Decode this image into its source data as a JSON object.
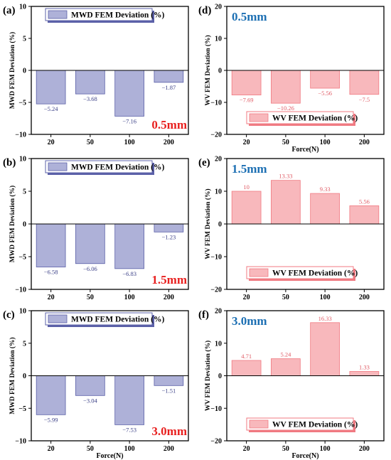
{
  "chart_data": [
    {
      "id": "a",
      "panel_label": "(a)",
      "type": "bar",
      "categories": [
        "20",
        "50",
        "100",
        "200"
      ],
      "values": [
        -5.24,
        -3.68,
        -7.16,
        -1.87
      ],
      "value_labels": [
        "−5.24",
        "−3.68",
        "−7.16",
        "−1.87"
      ],
      "legend": "MWD FEM Deviation (%)",
      "legend_position": "top",
      "ylabel": "MWD FEM Deviation (%)",
      "xlabel": "",
      "ylim": [
        -10,
        10
      ],
      "yticks": [
        "−10",
        "−5",
        "0",
        "5",
        "10"
      ],
      "annotation": "0.5mm",
      "annotation_color": "#e8201f",
      "annotation_position": "bottom-right",
      "bar_color": "#aeb1d8",
      "edge_color": "#5b60a8",
      "label_color": "#3a3f86"
    },
    {
      "id": "d",
      "panel_label": "(d)",
      "type": "bar",
      "categories": [
        "20",
        "50",
        "100",
        "200"
      ],
      "values": [
        -7.69,
        -10.26,
        -5.56,
        -7.5
      ],
      "value_labels": [
        "−7.69",
        "−10.26",
        "−5.56",
        "−7.5"
      ],
      "legend": "WV FEM Deviation (%)",
      "legend_position": "bottom",
      "ylabel": "WV FEM Deviation (%)",
      "xlabel": "Force(N)",
      "ylim": [
        -20,
        20
      ],
      "yticks": [
        "−20",
        "−10",
        "0",
        "10",
        "20"
      ],
      "annotation": "0.5mm",
      "annotation_color": "#1c6fb3",
      "annotation_position": "top-left",
      "bar_color": "#f8b8bc",
      "edge_color": "#f07a82",
      "label_color": "#e05a64"
    },
    {
      "id": "b",
      "panel_label": "(b)",
      "type": "bar",
      "categories": [
        "20",
        "50",
        "100",
        "200"
      ],
      "values": [
        -6.58,
        -6.06,
        -6.83,
        -1.23
      ],
      "value_labels": [
        "−6.58",
        "−6.06",
        "−6.83",
        "−1.23"
      ],
      "legend": "MWD FEM Deviation (%)",
      "legend_position": "top",
      "ylabel": "MWD FEM Deviation (%)",
      "xlabel": "",
      "ylim": [
        -10,
        10
      ],
      "yticks": [
        "−10",
        "−5",
        "0",
        "5",
        "10"
      ],
      "annotation": "1.5mm",
      "annotation_color": "#e8201f",
      "annotation_position": "bottom-right",
      "bar_color": "#aeb1d8",
      "edge_color": "#5b60a8",
      "label_color": "#3a3f86"
    },
    {
      "id": "e",
      "panel_label": "(e)",
      "type": "bar",
      "categories": [
        "20",
        "50",
        "100",
        "200"
      ],
      "values": [
        10,
        13.33,
        9.33,
        5.56
      ],
      "value_labels": [
        "10",
        "13.33",
        "9.33",
        "5.56"
      ],
      "legend": "WV FEM Deviation (%)",
      "legend_position": "bottom",
      "ylabel": "WV FEM Deviation (%)",
      "xlabel": "",
      "ylim": [
        -20,
        20
      ],
      "yticks": [
        "−20",
        "−10",
        "0",
        "10",
        "20"
      ],
      "annotation": "1.5mm",
      "annotation_color": "#1c6fb3",
      "annotation_position": "top-left",
      "bar_color": "#f8b8bc",
      "edge_color": "#f07a82",
      "label_color": "#e05a64"
    },
    {
      "id": "c",
      "panel_label": "(c)",
      "type": "bar",
      "categories": [
        "20",
        "50",
        "100",
        "200"
      ],
      "values": [
        -5.99,
        -3.04,
        -7.53,
        -1.51
      ],
      "value_labels": [
        "−5.99",
        "−3.04",
        "−7.53",
        "−1.51"
      ],
      "legend": "MWD FEM Deviation (%)",
      "legend_position": "top",
      "ylabel": "MWD FEM Deviation (%)",
      "xlabel": "Force(N)",
      "ylim": [
        -10,
        10
      ],
      "yticks": [
        "−10",
        "−5",
        "0",
        "5",
        "10"
      ],
      "annotation": "3.0mm",
      "annotation_color": "#e8201f",
      "annotation_position": "bottom-right",
      "bar_color": "#aeb1d8",
      "edge_color": "#5b60a8",
      "label_color": "#3a3f86"
    },
    {
      "id": "f",
      "panel_label": "(f)",
      "type": "bar",
      "categories": [
        "20",
        "50",
        "100",
        "200"
      ],
      "values": [
        4.71,
        5.24,
        16.33,
        1.33
      ],
      "value_labels": [
        "4.71",
        "5.24",
        "16.33",
        "1.33"
      ],
      "legend": "WV FEM Deviation (%)",
      "legend_position": "bottom",
      "ylabel": "WV FEM Deviation (%)",
      "xlabel": "Force(N)",
      "ylim": [
        -20,
        20
      ],
      "yticks": [
        "−20",
        "−10",
        "0",
        "10",
        "20"
      ],
      "annotation": "3.0mm",
      "annotation_color": "#1c6fb3",
      "annotation_position": "top-left",
      "bar_color": "#f8b8bc",
      "edge_color": "#f07a82",
      "label_color": "#e05a64"
    }
  ]
}
